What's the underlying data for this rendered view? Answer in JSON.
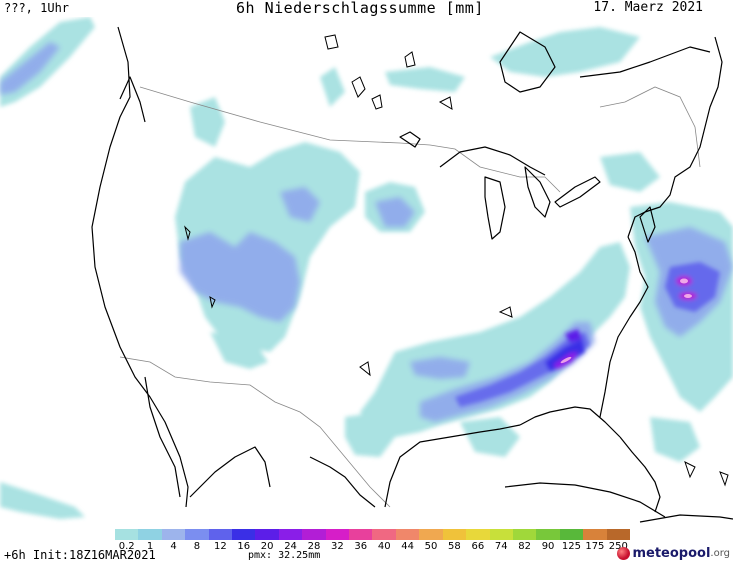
{
  "header": {
    "left": "???, 1Uhr",
    "title": "6h Niederschlagssumme [mm]",
    "date": "17. Maerz 2021"
  },
  "footer": {
    "run": "+6h Init:18Z16MAR2021",
    "pmx": "pmx: 32.25mm",
    "logo_main": "meteopool",
    "logo_suffix": ".org"
  },
  "map": {
    "region": "contiguous United States",
    "ocean_color": "#ffffff",
    "coastline_color": "#000000",
    "border_color": "#888888"
  },
  "legend": {
    "labels": [
      "0.2",
      "1",
      "4",
      "8",
      "12",
      "16",
      "20",
      "24",
      "28",
      "32",
      "36",
      "40",
      "44",
      "50",
      "58",
      "66",
      "74",
      "82",
      "90",
      "125",
      "175",
      "250"
    ],
    "colors": [
      "#a6e1e1",
      "#8fd2e3",
      "#9db4ec",
      "#7b8ef0",
      "#5f62ec",
      "#3a2fe6",
      "#5c1ee8",
      "#8a1ee8",
      "#b21ed6",
      "#d61ec8",
      "#e8409c",
      "#f06882",
      "#f0876a",
      "#f0a850",
      "#f0c23a",
      "#e8d83a",
      "#c8e03a",
      "#a0d83a",
      "#78c83a",
      "#58b83a",
      "#d8823a",
      "#b8682a"
    ]
  }
}
